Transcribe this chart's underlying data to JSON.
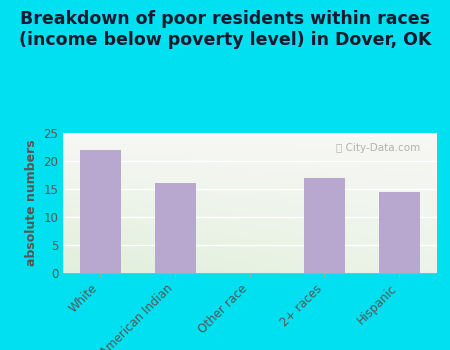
{
  "title": "Breakdown of poor residents within races\n(income below poverty level) in Dover, OK",
  "categories": [
    "White",
    "American Indian",
    "Other race",
    "2+ races",
    "Hispanic"
  ],
  "values": [
    22,
    16,
    0,
    17,
    14.5
  ],
  "bar_color": "#b8a8d0",
  "ylabel": "absolute numbers",
  "ylim": [
    0,
    25
  ],
  "yticks": [
    0,
    5,
    10,
    15,
    20,
    25
  ],
  "bg_outer": "#00e0f0",
  "title_fontsize": 12.5,
  "ylabel_fontsize": 9,
  "tick_fontsize": 8.5,
  "title_color": "#1a1a2e",
  "label_color": "#555555",
  "watermark": "City-Data.com"
}
